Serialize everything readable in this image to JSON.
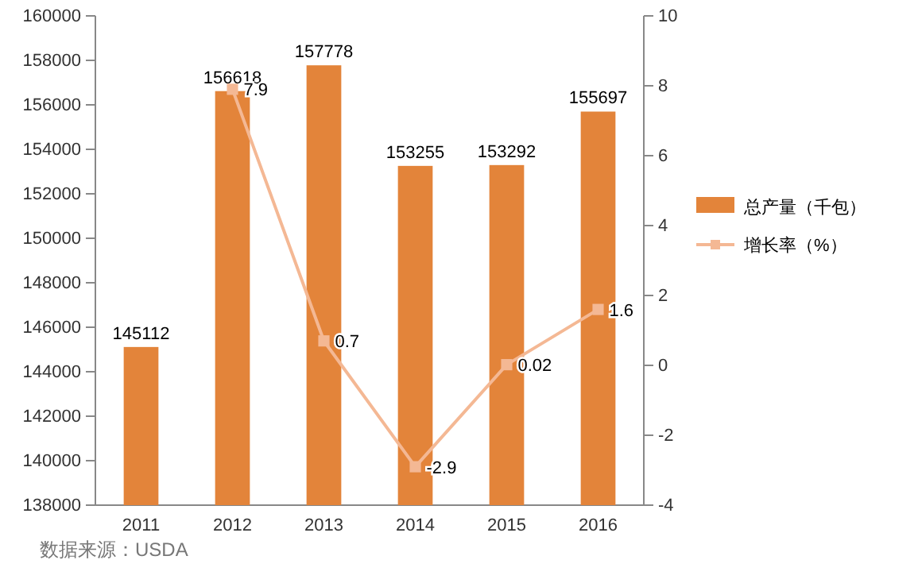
{
  "chart_data": {
    "type": "bar",
    "categories": [
      "2011",
      "2012",
      "2013",
      "2014",
      "2015",
      "2016"
    ],
    "series": [
      {
        "name": "总产量（千包）",
        "color": "#e3843a",
        "values": [
          145112,
          156618,
          157778,
          153255,
          153292,
          155697
        ]
      },
      {
        "name": "增长率（%）",
        "type": "line",
        "axis": "y2",
        "color": "#f4b894",
        "marker": "square",
        "values": [
          null,
          7.9,
          0.7,
          -2.9,
          0.02,
          1.6
        ]
      }
    ],
    "ylim": [
      138000,
      160000
    ],
    "yticks": [
      138000,
      140000,
      142000,
      144000,
      146000,
      148000,
      150000,
      152000,
      154000,
      156000,
      158000,
      160000
    ],
    "y2lim": [
      -4,
      10
    ],
    "y2ticks": [
      -4,
      -2,
      0,
      2,
      4,
      6,
      8,
      10
    ],
    "data_labels": true,
    "legend": "right",
    "grid": false,
    "annotations": [
      "数据来源：USDA"
    ]
  }
}
